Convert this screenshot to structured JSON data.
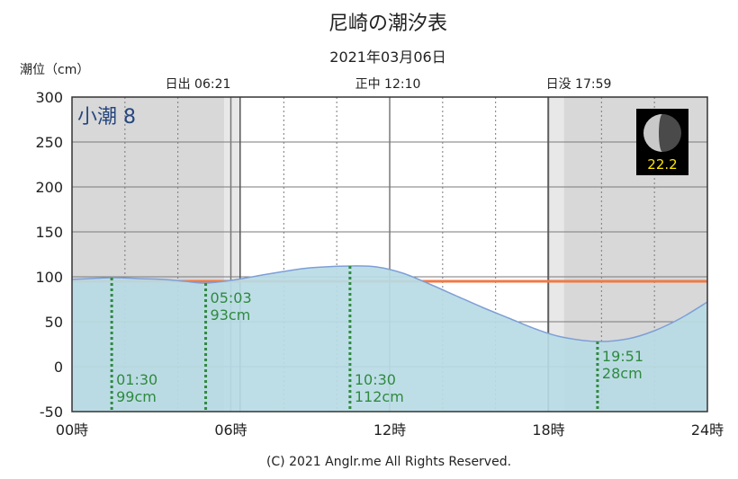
{
  "chart_data": {
    "type": "area",
    "title": "尼崎の潮汐表",
    "subtitle": "2021年03月06日",
    "ylabel": "潮位（cm）",
    "ylim": [
      -50,
      300
    ],
    "xlim": [
      0,
      24
    ],
    "y_ticks": [
      300,
      250,
      200,
      150,
      100,
      50,
      0,
      -50
    ],
    "y_tick_labels": [
      "300",
      "250",
      "200",
      "150",
      "100",
      "50",
      "0",
      "-50"
    ],
    "x_ticks": [
      0,
      6,
      12,
      18,
      24
    ],
    "x_tick_labels": [
      "00時",
      "06時",
      "12時",
      "18時",
      "24時"
    ],
    "grid": true,
    "tide_name": "小潮 8",
    "moon_age": "22.2",
    "sunrise": {
      "label": "日出 06:21",
      "hour": 6.35
    },
    "noon": {
      "label": "正中 12:10",
      "hour": 12.167
    },
    "sunset": {
      "label": "日没 17:59",
      "hour": 17.983
    },
    "mean_level": 95,
    "series": [
      {
        "x": [
          0,
          1.5,
          2.5,
          3.5,
          4.25,
          5.05,
          6,
          7,
          8,
          9,
          10.5,
          11.5,
          12.5,
          13.5,
          14.5,
          15.5,
          16.5,
          17.5,
          18.5,
          19.86,
          21,
          22,
          23,
          24
        ],
        "values": [
          97,
          99,
          98,
          97,
          95,
          93,
          96,
          101,
          106,
          110,
          112,
          111,
          104,
          92,
          79,
          66,
          54,
          42,
          33,
          28,
          31,
          40,
          54,
          72
        ]
      }
    ],
    "annotations": [
      {
        "hour": 1.5,
        "value": 99,
        "time": "01:30",
        "height": "99cm"
      },
      {
        "hour": 5.05,
        "value": 93,
        "time": "05:03",
        "height": "93cm"
      },
      {
        "hour": 10.5,
        "value": 112,
        "time": "10:30",
        "height": "112cm"
      },
      {
        "hour": 19.85,
        "value": 28,
        "time": "19:51",
        "height": "28cm"
      }
    ]
  },
  "colors": {
    "night": "#d8d8d8",
    "twilight": "#e8e8e8",
    "tide_fill": "#b8dbe5",
    "tide_line": "#7e9fd6",
    "mean_line": "#f07a45",
    "annotation": "#2f8a3e",
    "grid": "#7a7a7a"
  },
  "footer": "(C) 2021 Anglr.me All Rights Reserved."
}
